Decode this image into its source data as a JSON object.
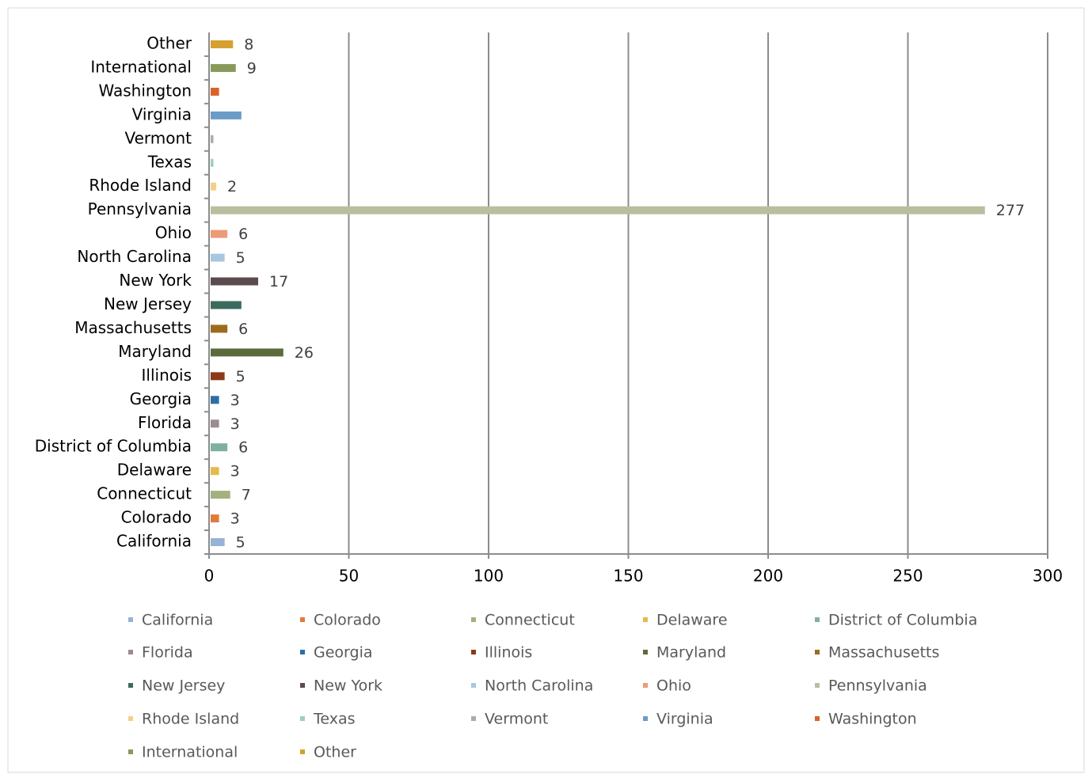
{
  "chart_data": {
    "type": "bar",
    "orientation": "horizontal",
    "categories": [
      "California",
      "Colorado",
      "Connecticut",
      "Delaware",
      "District of Columbia",
      "Florida",
      "Georgia",
      "Illinois",
      "Maryland",
      "Massachusetts",
      "New Jersey",
      "New York",
      "North Carolina",
      "Ohio",
      "Pennsylvania",
      "Rhode Island",
      "Texas",
      "Vermont",
      "Virginia",
      "Washington",
      "International",
      "Other"
    ],
    "values": [
      5,
      3,
      7,
      3,
      6,
      3,
      3,
      5,
      26,
      6,
      11,
      17,
      5,
      6,
      277,
      2,
      1,
      1,
      11,
      3,
      9,
      8
    ],
    "value_labels": [
      "5",
      "3",
      "7",
      "3",
      "6",
      "3",
      "3",
      "5",
      "26",
      "6",
      null,
      "17",
      "5",
      "6",
      "277",
      "2",
      null,
      null,
      null,
      null,
      "9",
      "8"
    ],
    "colors": [
      "#95b3d7",
      "#e07b39",
      "#a3b17f",
      "#e5b94d",
      "#7fb0a0",
      "#9d8b8f",
      "#2f6ea5",
      "#8b3a1a",
      "#5c6b3c",
      "#9c6b1c",
      "#3b6b5e",
      "#5b4b4f",
      "#a9c7e0",
      "#ec9a78",
      "#b8bf9f",
      "#f5d08a",
      "#9ccfc2",
      "#b0aaa8",
      "#6a9cc7",
      "#d9622b",
      "#889a5a",
      "#d6a030"
    ],
    "xlim": [
      0,
      300
    ],
    "xticks": [
      0,
      50,
      100,
      150,
      200,
      250,
      300
    ],
    "grid": true,
    "legend": "bottom"
  }
}
